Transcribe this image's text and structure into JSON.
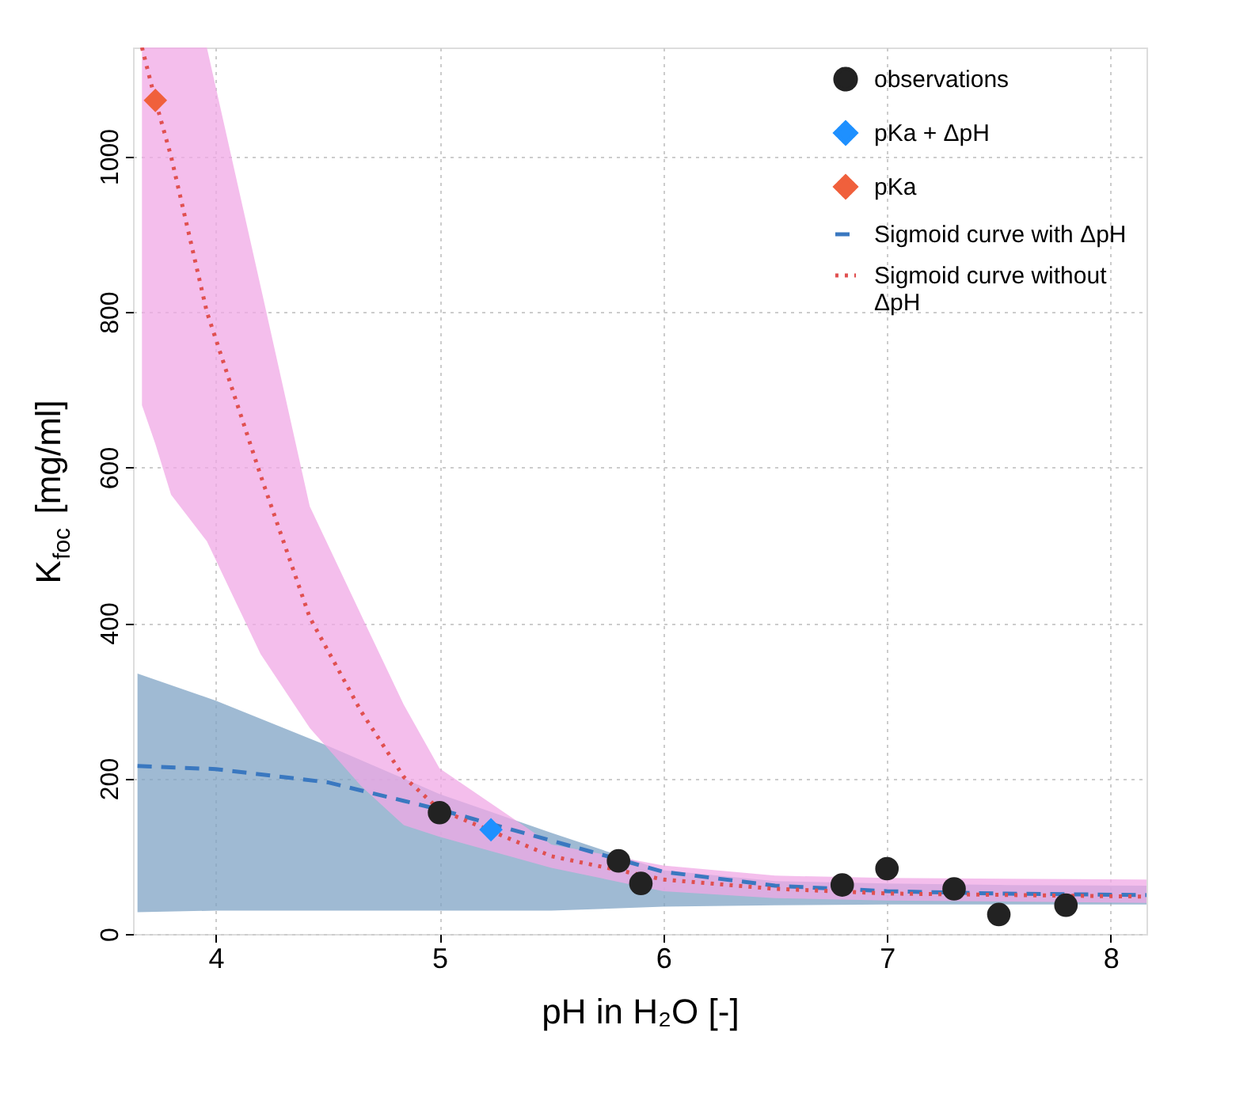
{
  "chart_data": {
    "type": "scatter",
    "xlabel": "pH in H₂O [-]",
    "ylabel": "K$_{foc}$ [mg/ml]",
    "xlim": [
      3.63,
      8.16
    ],
    "ylim": [
      0,
      1140
    ],
    "xticks": [
      4,
      5,
      6,
      7,
      8
    ],
    "yticks": [
      0,
      200,
      400,
      600,
      800,
      1000
    ],
    "grid": true,
    "legend": "top right",
    "series": [
      {
        "name": "Sigmoid curve with ΔpH",
        "type": "line",
        "line_style": "dashed",
        "marker": "none",
        "color": "#3a78c0",
        "x": [
          3.65,
          4.0,
          4.5,
          5.0,
          5.5,
          6.0,
          6.5,
          7.0,
          7.5,
          8.16
        ],
        "values": [
          216,
          212,
          195,
          160,
          120,
          80,
          62,
          55,
          52,
          50
        ],
        "upper": [
          335,
          300,
          242,
          180,
          130,
          82,
          68,
          65,
          63,
          62
        ],
        "lower": [
          28,
          30,
          30,
          30,
          30,
          35,
          37,
          38,
          38,
          38
        ]
      },
      {
        "name": "Sigmoid curve without\nΔpH",
        "type": "line",
        "line_style": "dotted",
        "marker": "none",
        "color": "#e05050",
        "x": [
          3.67,
          3.73,
          3.8,
          3.96,
          4.2,
          4.42,
          4.65,
          4.84,
          5.0,
          5.5,
          6.0,
          6.5,
          7.0,
          8.16
        ],
        "values": [
          1140,
          1072,
          1000,
          800,
          590,
          407,
          286,
          202,
          160,
          100,
          70,
          58,
          52,
          48
        ],
        "upper": [
          1140,
          1140,
          1140,
          1140,
          833,
          550,
          410,
          295,
          213,
          115,
          88,
          75,
          72,
          70
        ],
        "lower": [
          680,
          630,
          565,
          505,
          360,
          265,
          190,
          140,
          125,
          85,
          55,
          46,
          43,
          40
        ]
      },
      {
        "name": "observations",
        "marker": "circle",
        "color": "#222222",
        "x": [
          5.0,
          5.8,
          5.9,
          6.8,
          7.0,
          7.3,
          7.5,
          7.8
        ],
        "values": [
          156,
          94,
          65,
          63,
          84,
          58,
          25,
          37
        ]
      },
      {
        "name": "pKa + ΔpH",
        "marker": "diamond",
        "color": "#1e90ff",
        "x": [
          5.23
        ],
        "values": [
          134
        ]
      },
      {
        "name": "pKa",
        "marker": "diamond",
        "color": "#f0603c",
        "x": [
          3.73
        ],
        "values": [
          1072
        ]
      }
    ]
  }
}
